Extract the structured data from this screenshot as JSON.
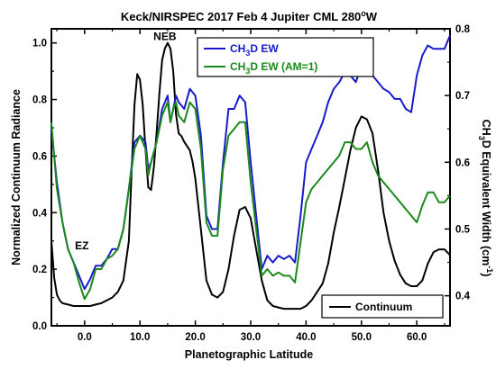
{
  "chart_data": {
    "type": "line",
    "title": "Keck/NIRSPEC 2017 Feb 4 Jupiter CML 280°W",
    "title_parts": {
      "main": "Keck/NIRSPEC 2017 Feb 4 Jupiter CML 280",
      "sup": "o",
      "end": "W"
    },
    "xlabel": "Planetographic Latitude",
    "ylabel_left": "Normalized Continuum Radiance",
    "ylabel_right": "CH3D Equivalent Width (cm-1)",
    "ylabel_right_parts": {
      "a": "CH",
      "sub": "3",
      "b": "D Equivalent Width (cm",
      "sup": "-1",
      "c": ")"
    },
    "xlim": [
      -6,
      66
    ],
    "ylim_left": [
      0.0,
      1.05
    ],
    "ylim_right": [
      0.355,
      0.8
    ],
    "x_ticks": [
      "0.0",
      "10.0",
      "20.0",
      "30.0",
      "40.0",
      "50.0",
      "60.0"
    ],
    "x_tick_values": [
      0,
      10,
      20,
      30,
      40,
      50,
      60
    ],
    "y_ticks_left": [
      "0.0",
      "0.2",
      "0.4",
      "0.6",
      "0.8",
      "1.0"
    ],
    "y_tick_values_left": [
      0.0,
      0.2,
      0.4,
      0.6,
      0.8,
      1.0
    ],
    "y_ticks_right": [
      "0.4",
      "0.5",
      "0.6",
      "0.7",
      "0.8"
    ],
    "y_tick_values_right": [
      0.4,
      0.5,
      0.6,
      0.7,
      0.8
    ],
    "annotations": [
      {
        "text": "NEB",
        "x": 14.5,
        "y": 1.01
      },
      {
        "text": "EZ",
        "x": -0.5,
        "y": 0.27
      }
    ],
    "legend_top": [
      {
        "main": "CH",
        "sub": "3",
        "rest": "D EW",
        "color": "#1a1acc"
      },
      {
        "main": "CH",
        "sub": "3",
        "rest": "D EW (AM=1)",
        "color": "#1a8a1a"
      }
    ],
    "legend_bottom": {
      "label": "Continuum",
      "color": "#000000"
    },
    "series": [
      {
        "name": "Continuum",
        "axis": "left",
        "color": "#000000",
        "x": [
          -6,
          -5.5,
          -5,
          -4.5,
          -4,
          -3,
          -2,
          -1,
          0,
          1,
          2,
          3,
          4,
          5,
          6,
          7,
          8,
          8.5,
          9,
          9.5,
          10,
          10.5,
          11,
          11.5,
          12,
          12.5,
          13,
          13.5,
          14,
          14.5,
          15,
          15.5,
          16,
          16.5,
          17,
          17.5,
          18,
          19,
          19.5,
          20,
          21,
          22,
          23,
          24,
          25,
          26,
          27,
          28,
          29,
          30,
          31,
          32,
          33,
          34,
          35,
          36,
          37,
          38,
          39,
          40,
          41,
          42,
          43,
          44,
          45,
          46,
          47,
          48,
          49,
          50,
          51,
          52,
          53,
          54,
          55,
          56,
          57,
          58,
          59,
          60,
          61,
          62,
          63,
          64,
          65,
          66
        ],
        "y": [
          0.3,
          0.17,
          0.11,
          0.09,
          0.08,
          0.075,
          0.07,
          0.07,
          0.07,
          0.07,
          0.075,
          0.08,
          0.09,
          0.1,
          0.12,
          0.16,
          0.3,
          0.55,
          0.78,
          0.89,
          0.87,
          0.78,
          0.62,
          0.49,
          0.48,
          0.56,
          0.68,
          0.82,
          0.94,
          0.98,
          1.0,
          0.98,
          0.9,
          0.75,
          0.68,
          0.67,
          0.65,
          0.62,
          0.58,
          0.52,
          0.34,
          0.16,
          0.11,
          0.1,
          0.12,
          0.2,
          0.32,
          0.41,
          0.42,
          0.38,
          0.27,
          0.16,
          0.09,
          0.07,
          0.065,
          0.06,
          0.06,
          0.06,
          0.06,
          0.07,
          0.09,
          0.12,
          0.15,
          0.22,
          0.33,
          0.42,
          0.52,
          0.62,
          0.7,
          0.74,
          0.73,
          0.68,
          0.55,
          0.4,
          0.3,
          0.23,
          0.18,
          0.15,
          0.14,
          0.14,
          0.16,
          0.22,
          0.26,
          0.27,
          0.27,
          0.25
        ]
      },
      {
        "name": "CH3D EW",
        "axis": "right",
        "color": "#1a1acc",
        "x": [
          -6,
          -5,
          -4,
          -3,
          -2,
          -1,
          0,
          1,
          2,
          3,
          4,
          5,
          6,
          7,
          8,
          9,
          10,
          11,
          11.5,
          12,
          13,
          14,
          15,
          15.5,
          16,
          16.5,
          17,
          18,
          19,
          20,
          21,
          22,
          23,
          24,
          25,
          26,
          27,
          28,
          29,
          30,
          31,
          32,
          33,
          34,
          35,
          36,
          37,
          38,
          39,
          40,
          41,
          42,
          43,
          44,
          45,
          46,
          47,
          48,
          49,
          50,
          51,
          52,
          53,
          54,
          55,
          56,
          57,
          58,
          59,
          60,
          61,
          62,
          63,
          64,
          65,
          66
        ],
        "y": [
          0.65,
          0.57,
          0.51,
          0.47,
          0.45,
          0.43,
          0.41,
          0.425,
          0.445,
          0.445,
          0.455,
          0.47,
          0.47,
          0.5,
          0.56,
          0.63,
          0.64,
          0.63,
          0.59,
          0.6,
          0.63,
          0.68,
          0.7,
          0.66,
          0.68,
          0.7,
          0.69,
          0.68,
          0.71,
          0.7,
          0.64,
          0.52,
          0.5,
          0.5,
          0.6,
          0.68,
          0.68,
          0.7,
          0.69,
          0.6,
          0.52,
          0.44,
          0.46,
          0.45,
          0.46,
          0.455,
          0.46,
          0.45,
          0.52,
          0.6,
          0.62,
          0.64,
          0.66,
          0.69,
          0.71,
          0.72,
          0.735,
          0.73,
          0.72,
          0.745,
          0.76,
          0.73,
          0.72,
          0.71,
          0.705,
          0.695,
          0.695,
          0.68,
          0.675,
          0.73,
          0.76,
          0.775,
          0.77,
          0.77,
          0.77,
          0.79
        ]
      },
      {
        "name": "CH3D EW (AM=1)",
        "axis": "right",
        "color": "#1a8a1a",
        "x": [
          -6,
          -5,
          -4,
          -3,
          -2,
          -1,
          0,
          1,
          2,
          3,
          4,
          5,
          6,
          7,
          8,
          9,
          10,
          11,
          11.5,
          12,
          13,
          14,
          15,
          15.5,
          16,
          16.5,
          17,
          18,
          19,
          20,
          21,
          22,
          23,
          24,
          25,
          26,
          27,
          28,
          29,
          30,
          31,
          32,
          33,
          34,
          35,
          36,
          37,
          38,
          39,
          40,
          41,
          42,
          43,
          44,
          45,
          46,
          47,
          48,
          49,
          50,
          51,
          52,
          53,
          54,
          55,
          56,
          57,
          58,
          59,
          60,
          61,
          62,
          63,
          64,
          65,
          66
        ],
        "y": [
          0.66,
          0.56,
          0.51,
          0.47,
          0.45,
          0.42,
          0.395,
          0.41,
          0.44,
          0.44,
          0.455,
          0.46,
          0.47,
          0.5,
          0.56,
          0.62,
          0.64,
          0.62,
          0.58,
          0.6,
          0.63,
          0.67,
          0.69,
          0.66,
          0.68,
          0.69,
          0.67,
          0.66,
          0.69,
          0.68,
          0.62,
          0.51,
          0.49,
          0.49,
          0.59,
          0.64,
          0.65,
          0.66,
          0.66,
          0.57,
          0.5,
          0.43,
          0.44,
          0.43,
          0.435,
          0.43,
          0.43,
          0.42,
          0.48,
          0.54,
          0.56,
          0.57,
          0.58,
          0.59,
          0.6,
          0.61,
          0.63,
          0.63,
          0.62,
          0.62,
          0.63,
          0.6,
          0.58,
          0.57,
          0.56,
          0.55,
          0.54,
          0.53,
          0.52,
          0.51,
          0.535,
          0.555,
          0.555,
          0.54,
          0.54,
          0.55
        ]
      }
    ]
  }
}
